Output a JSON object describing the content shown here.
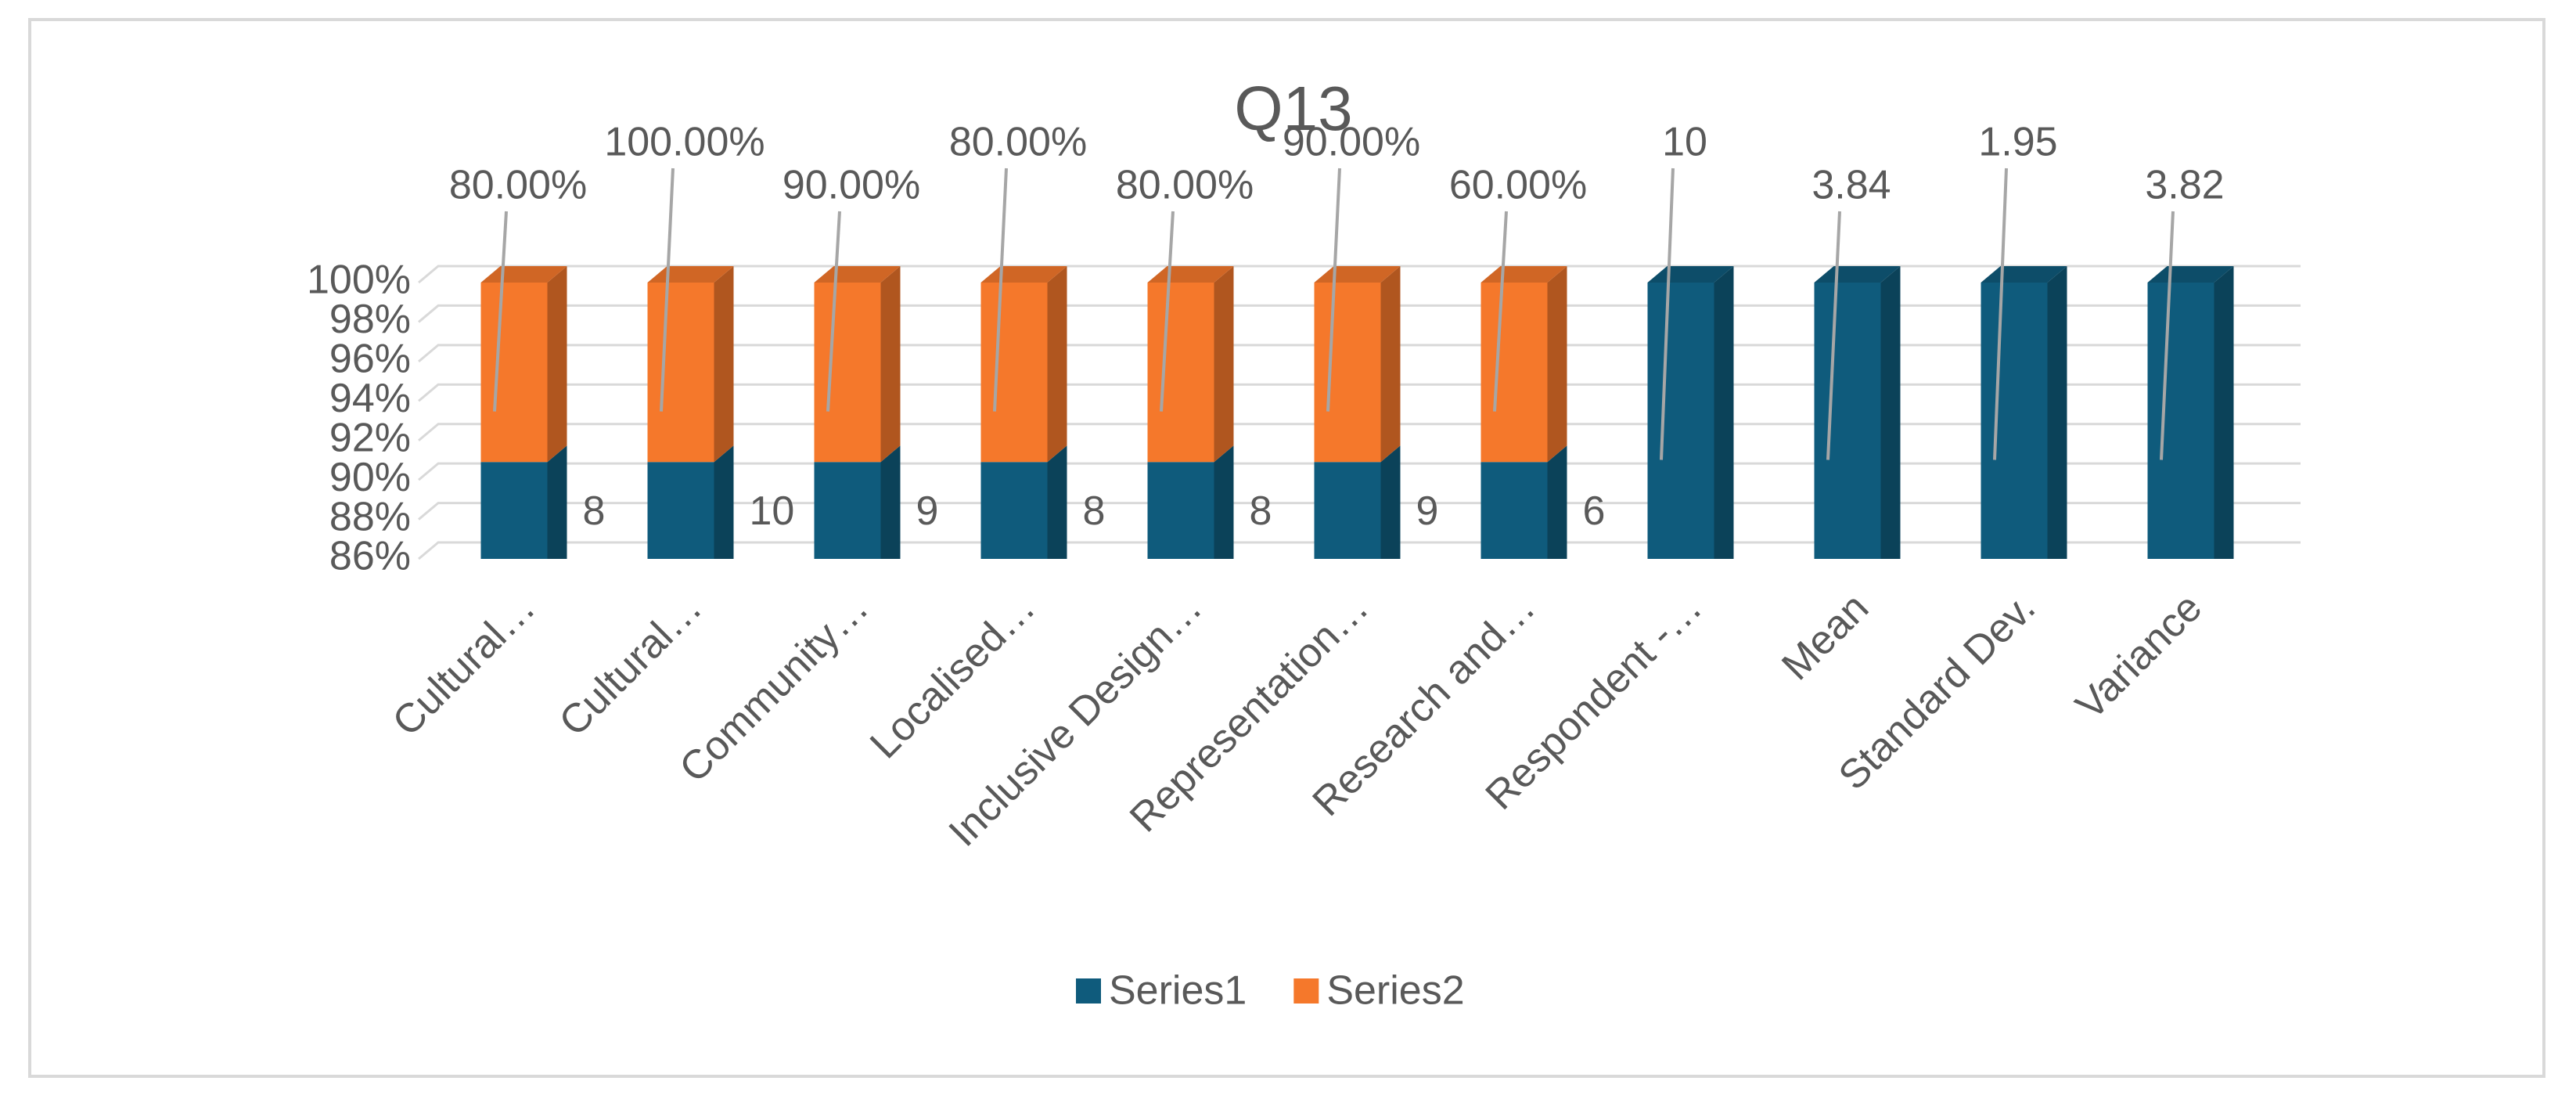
{
  "chart_data": {
    "type": "bar",
    "stacking": "percent",
    "title": "Q13",
    "categories": [
      "Cultural…",
      "Cultural…",
      "Community…",
      "Localised…",
      "Inclusive Design…",
      "Representation…",
      "Research and…",
      "Respondent -…",
      "Mean",
      "Standard Dev.",
      "Variance"
    ],
    "series": [
      {
        "name": "Series1",
        "color": "#0f5b7c",
        "values": [
          8,
          10,
          9,
          8,
          8,
          9,
          6,
          10,
          3.84,
          1.95,
          3.82
        ]
      },
      {
        "name": "Series2",
        "color": "#f5782b",
        "values": [
          0.8,
          1,
          0.9,
          0.8,
          0.8,
          0.9,
          0.6,
          null,
          null,
          null,
          null
        ],
        "value_labels": [
          "80.00%",
          "100.00%",
          "90.00%",
          "80.00%",
          "80.00%",
          "90.00%",
          "60.00%",
          null,
          null,
          null,
          null
        ]
      }
    ],
    "ylim": [
      86,
      100
    ],
    "yticks": [
      {
        "value": 86,
        "label": "86%"
      },
      {
        "value": 88,
        "label": "88%"
      },
      {
        "value": 90,
        "label": "90%"
      },
      {
        "value": 92,
        "label": "92%"
      },
      {
        "value": 94,
        "label": "94%"
      },
      {
        "value": 96,
        "label": "96%"
      },
      {
        "value": 98,
        "label": "98%"
      },
      {
        "value": 100,
        "label": "100%"
      }
    ],
    "grid": true,
    "legend": "bottom"
  }
}
